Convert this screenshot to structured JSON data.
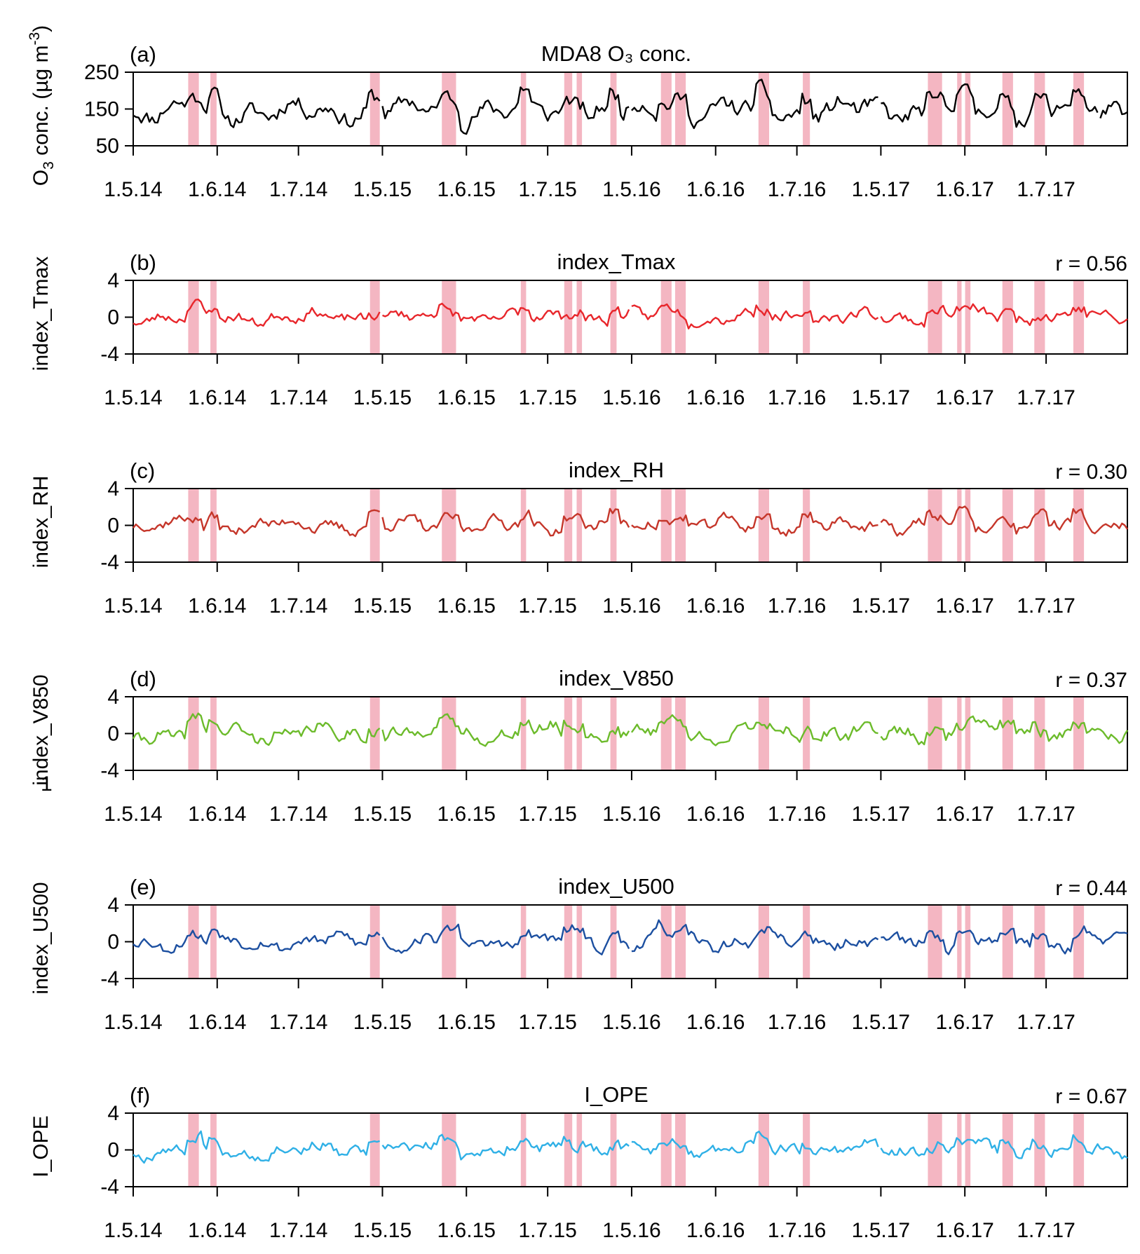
{
  "chart_data": {
    "type": "line",
    "x_categories": [
      "1.5.14",
      "1.6.14",
      "1.7.14",
      "1.5.15",
      "1.6.15",
      "1.7.15",
      "1.5.16",
      "1.6.16",
      "1.7.16",
      "1.5.17",
      "1.6.17",
      "1.7.17"
    ],
    "highlight_periods_day_index": [
      [
        62,
        74
      ],
      [
        87,
        94
      ],
      [
        267,
        278
      ],
      [
        348,
        364
      ],
      [
        437,
        443
      ],
      [
        486,
        495
      ],
      [
        500,
        506
      ],
      [
        538,
        545
      ],
      [
        595,
        607
      ],
      [
        611,
        623
      ],
      [
        705,
        717
      ],
      [
        755,
        763
      ],
      [
        896,
        912
      ],
      [
        929,
        934
      ],
      [
        938,
        944
      ],
      [
        980,
        992
      ],
      [
        1016,
        1028
      ],
      [
        1060,
        1072
      ]
    ],
    "panels": [
      {
        "label": "(a)",
        "title": "MDA8 O₃ conc.",
        "ylabel_main": "O",
        "ylabel_sub": "3",
        "ylabel_rest": " conc. (µg m",
        "ylabel_sup": "-3",
        "ylabel_end": ")",
        "r": "",
        "ylim": [
          50,
          250
        ],
        "yticks": [
          "250",
          "150",
          "50"
        ],
        "ytick_values": [
          250,
          150,
          50
        ],
        "color": "#000000",
        "base": 145,
        "amp": 38,
        "seed": 11,
        "clip": [
          60,
          245
        ]
      },
      {
        "label": "(b)",
        "title": "index_Tmax",
        "ylabel": "index_Tmax",
        "r": "r = 0.56",
        "ylim": [
          -4,
          4
        ],
        "yticks": [
          "4",
          "0",
          "-4"
        ],
        "ytick_values": [
          4,
          0,
          -4
        ],
        "color": "#e8262b",
        "base": 0,
        "amp": 0.9,
        "seed": 23,
        "clip": [
          -3.6,
          2.2
        ]
      },
      {
        "label": "(c)",
        "title": "index_RH",
        "ylabel": "index_RH",
        "r": "r = 0.30",
        "ylim": [
          -4,
          4
        ],
        "yticks": [
          "4",
          "0",
          "-4"
        ],
        "ytick_values": [
          4,
          0,
          -4
        ],
        "color": "#c5362a",
        "base": 0,
        "amp": 1.0,
        "seed": 37,
        "clip": [
          -2.4,
          2.4
        ]
      },
      {
        "label": "(d)",
        "title": "index_V850",
        "ylabel": "index_V850",
        "r": "r = 0.37",
        "ylim": [
          -4,
          4
        ],
        "yticks": [
          "4",
          "0",
          "-4"
        ],
        "ytick_values": [
          4,
          0,
          -4
        ],
        "color": "#6cbb2b",
        "base": 0,
        "amp": 1.2,
        "seed": 41,
        "clip": [
          -3.0,
          3.0
        ]
      },
      {
        "label": "(e)",
        "title": "index_U500",
        "ylabel": "index_U500",
        "r": "r = 0.44",
        "ylim": [
          -4,
          4
        ],
        "yticks": [
          "4",
          "0",
          "-4"
        ],
        "ytick_values": [
          4,
          0,
          -4
        ],
        "color": "#1c4fa0",
        "base": 0,
        "amp": 1.0,
        "seed": 53,
        "clip": [
          -2.6,
          3.2
        ]
      },
      {
        "label": "(f)",
        "title": "I_OPE",
        "ylabel": "I_OPE",
        "r": "r = 0.67",
        "ylim": [
          -4,
          4
        ],
        "yticks": [
          "4",
          "0",
          "-4"
        ],
        "ytick_values": [
          4,
          0,
          -4
        ],
        "color": "#2fb0e6",
        "base": 0,
        "amp": 1.0,
        "seed": 67,
        "clip": [
          -3.2,
          2.8
        ]
      }
    ],
    "stray_label": "1"
  }
}
